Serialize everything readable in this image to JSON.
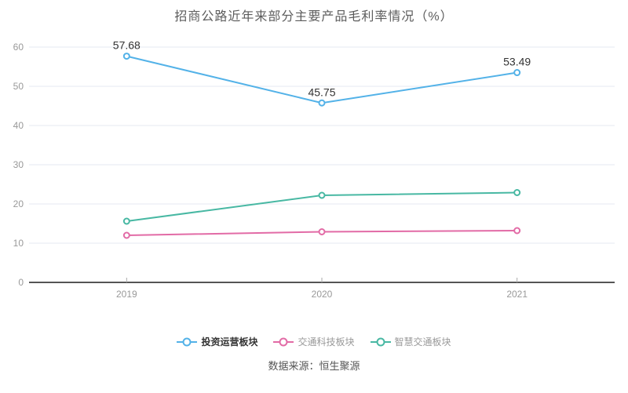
{
  "title": "招商公路近年来部分主要产品毛利率情况（%）",
  "source_note": "数据来源：恒生聚源",
  "colors": {
    "background": "#ffffff",
    "grid": "#e4eaf2",
    "axis_line": "#555555",
    "tick": "#aaaaaa",
    "axis_text": "#999999",
    "label_text": "#333333",
    "title_text": "#5c5c5c",
    "legend_active_text": "#333333",
    "legend_inactive_text": "#999999"
  },
  "chart_data": {
    "type": "line",
    "title": "招商公路近年来部分主要产品毛利率情况（%）",
    "categories": [
      "2019",
      "2020",
      "2021"
    ],
    "series": [
      {
        "name": "投资运营板块",
        "color": "#53b2e8",
        "values": [
          57.68,
          45.75,
          53.49
        ],
        "labels": [
          "57.68",
          "45.75",
          "53.49"
        ],
        "legend_active": true
      },
      {
        "name": "交通科技板块",
        "color": "#e26ba6",
        "values": [
          12.0,
          12.9,
          13.2
        ],
        "labels": [],
        "legend_active": false
      },
      {
        "name": "智慧交通板块",
        "color": "#48b8a3",
        "values": [
          15.6,
          22.2,
          22.9
        ],
        "labels": [],
        "legend_active": false
      }
    ],
    "xlabel": "",
    "ylabel": "",
    "ylim": [
      0,
      60
    ],
    "y_ticks": [
      0,
      10,
      20,
      30,
      40,
      50,
      60
    ],
    "grid": true,
    "legend_position": "bottom",
    "point_style": "hollow-circle"
  }
}
